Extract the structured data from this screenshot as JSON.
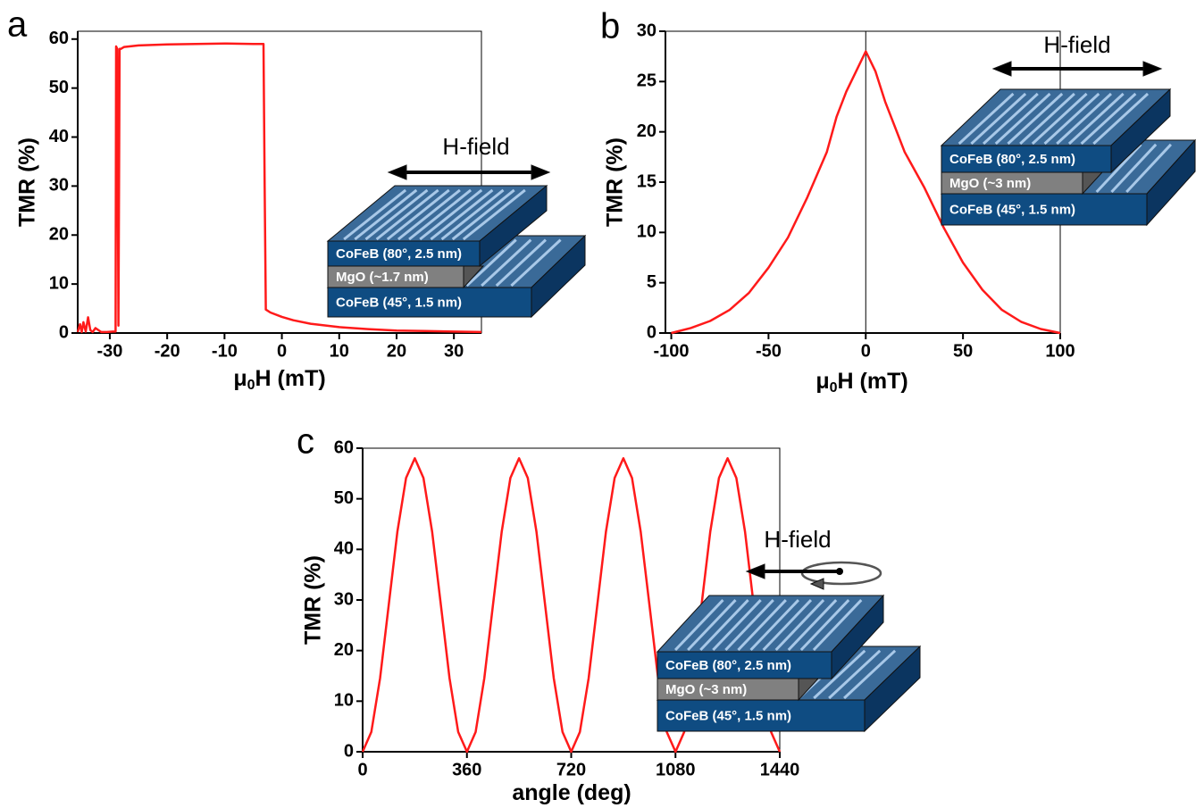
{
  "chart_data": [
    {
      "type": "line",
      "panel": "a",
      "color": "#ff1a1a",
      "x_label": [
        "μ",
        "0",
        "H (mT)"
      ],
      "y_label": "TMR  (%)",
      "x": [
        -35.6,
        -35.2,
        -34.9,
        -34.6,
        -34.2,
        -33.8,
        -33.4,
        -33,
        -32.5,
        -31.5,
        -30.5,
        -29.5,
        -29,
        -28.9,
        -28.7,
        -28.5,
        -28.3,
        -28.1,
        -27.5,
        -25,
        -20,
        -15,
        -10,
        -5,
        -3.2,
        -3,
        -2.8,
        -2,
        0,
        2,
        5,
        10,
        15,
        20,
        25,
        30,
        34.8
      ],
      "values": [
        0.2,
        1.8,
        0.2,
        2.2,
        0.3,
        3.2,
        0.6,
        0.2,
        1,
        0.2,
        0.2,
        0.3,
        0.3,
        58.5,
        58,
        1.5,
        58,
        58,
        58.4,
        58.7,
        58.9,
        59,
        59.1,
        59,
        59,
        30,
        4.8,
        4.2,
        3.3,
        2.6,
        1.9,
        1.2,
        0.8,
        0.5,
        0.4,
        0.3,
        0.2
      ],
      "xlim": [
        -35.6,
        34.8
      ],
      "xticks": [
        -30,
        -20,
        -10,
        0,
        10,
        20,
        30
      ],
      "ylim": [
        0,
        61.6
      ],
      "yticks": [
        0,
        10,
        20,
        30,
        40,
        50,
        60
      ],
      "inset": {
        "field_label": "H-field",
        "layers": [
          "CoFeB (80°, 2.5 nm)",
          "MgO (~1.7 nm)",
          "CoFeB (45°, 1.5 nm)"
        ]
      }
    },
    {
      "type": "line",
      "panel": "b",
      "color": "#ff1a1a",
      "zero_line": true,
      "x_label": [
        "μ",
        "0",
        "H  (mT)"
      ],
      "y_label": "TMR  (%)",
      "x": [
        -100,
        -90,
        -80,
        -70,
        -60,
        -50,
        -40,
        -30,
        -20,
        -15,
        -10,
        -5,
        0,
        5,
        10,
        15,
        20,
        30,
        40,
        50,
        60,
        70,
        80,
        90,
        100
      ],
      "values": [
        0,
        0.5,
        1.2,
        2.3,
        4,
        6.5,
        9.5,
        13.5,
        18,
        21.5,
        24,
        26,
        28,
        26,
        23,
        20.5,
        18,
        14.5,
        10.5,
        7,
        4.3,
        2.3,
        1.1,
        0.4,
        0
      ],
      "xlim": [
        -103,
        100
      ],
      "xticks": [
        -100,
        -50,
        0,
        50,
        100
      ],
      "ylim": [
        0,
        30
      ],
      "yticks": [
        0,
        5,
        10,
        15,
        20,
        25,
        30
      ],
      "inset": {
        "field_label": "H-field",
        "layers": [
          "CoFeB (80°, 2.5 nm)",
          "MgO (~3 nm)",
          "CoFeB (45°, 1.5 nm)"
        ]
      }
    },
    {
      "type": "line",
      "panel": "c",
      "color": "#ff1a1a",
      "x_label": [
        "angle (deg)"
      ],
      "y_label": "TMR  (%)",
      "x": [
        0,
        30,
        60,
        90,
        120,
        150,
        180,
        210,
        240,
        270,
        300,
        330,
        360,
        390,
        420,
        450,
        480,
        510,
        540,
        570,
        600,
        630,
        660,
        690,
        720,
        750,
        780,
        810,
        840,
        870,
        900,
        930,
        960,
        990,
        1020,
        1050,
        1080,
        1110,
        1140,
        1170,
        1200,
        1230,
        1260,
        1290,
        1320,
        1350,
        1380,
        1410,
        1440
      ],
      "values": [
        0,
        3.9,
        14.5,
        29,
        43.5,
        54.1,
        58,
        54.1,
        43.5,
        29,
        14.5,
        3.9,
        0,
        3.9,
        14.5,
        29,
        43.5,
        54.1,
        58,
        54.1,
        43.5,
        29,
        14.5,
        3.9,
        0,
        3.9,
        14.5,
        29,
        43.5,
        54.1,
        58,
        54.1,
        43.5,
        29,
        14.5,
        3.9,
        0,
        3.9,
        14.5,
        29,
        43.5,
        54.1,
        58,
        54.1,
        43.5,
        29,
        14.5,
        3.9,
        0
      ],
      "xlim": [
        0,
        1440
      ],
      "xticks": [
        0,
        360,
        720,
        1080,
        1440
      ],
      "ylim": [
        0,
        60
      ],
      "yticks": [
        0,
        10,
        20,
        30,
        40,
        50,
        60
      ],
      "inset": {
        "field_label": "H-field",
        "layers": [
          "CoFeB (80°, 2.5 nm)",
          "MgO (~3 nm)",
          "CoFeB (45°, 1.5 nm)"
        ]
      }
    }
  ]
}
